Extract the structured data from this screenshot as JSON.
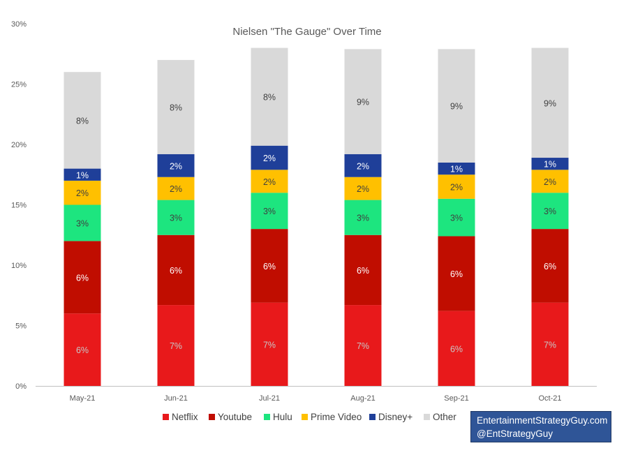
{
  "chart_data": {
    "type": "bar",
    "stacked": true,
    "title": "Nielsen \"The Gauge\" Over Time",
    "xlabel": "",
    "ylabel": "",
    "ylim": [
      0,
      30
    ],
    "y_ticks": [
      "0%",
      "5%",
      "10%",
      "15%",
      "20%",
      "25%",
      "30%"
    ],
    "y_tick_values": [
      0,
      5,
      10,
      15,
      20,
      25,
      30
    ],
    "grid": false,
    "legend_position": "bottom",
    "categories": [
      "May-21",
      "Jun-21",
      "Jul-21",
      "Aug-21",
      "Sep-21",
      "Oct-21"
    ],
    "series": [
      {
        "name": "Netflix",
        "color": "#e8191b",
        "values": [
          6.0,
          6.7,
          6.9,
          6.7,
          6.2,
          6.9
        ],
        "labels": [
          "6%",
          "7%",
          "7%",
          "7%",
          "6%",
          "7%"
        ],
        "label_color": "#c8c8c8"
      },
      {
        "name": "Youtube",
        "color": "#c00d00",
        "values": [
          6.0,
          5.8,
          6.1,
          5.8,
          6.2,
          6.1
        ],
        "labels": [
          "6%",
          "6%",
          "6%",
          "6%",
          "6%",
          "6%"
        ],
        "label_color": "#ffffff"
      },
      {
        "name": "Hulu",
        "color": "#1de57f",
        "values": [
          3.0,
          2.9,
          3.0,
          2.9,
          3.1,
          3.0
        ],
        "labels": [
          "3%",
          "3%",
          "3%",
          "3%",
          "3%",
          "3%"
        ],
        "label_color": "#404040"
      },
      {
        "name": "Prime Video",
        "color": "#ffc000",
        "values": [
          2.0,
          1.9,
          1.9,
          1.9,
          2.0,
          1.9
        ],
        "labels": [
          "2%",
          "2%",
          "2%",
          "2%",
          "2%",
          "2%"
        ],
        "label_color": "#404040"
      },
      {
        "name": "Disney+",
        "color": "#1f3f99",
        "values": [
          1.0,
          1.9,
          2.0,
          1.9,
          1.0,
          1.0
        ],
        "labels": [
          "1%",
          "2%",
          "2%",
          "2%",
          "1%",
          "1%"
        ],
        "label_color": "#ffffff"
      },
      {
        "name": "Other",
        "color": "#d9d9d9",
        "values": [
          8.0,
          7.8,
          8.1,
          8.7,
          9.4,
          9.1
        ],
        "labels": [
          "8%",
          "8%",
          "8%",
          "9%",
          "9%",
          "9%"
        ],
        "label_color": "#404040"
      }
    ]
  },
  "credit": {
    "line1": "EntertainmentStrategyGuy.com",
    "line2": "@EntStrategyGuy"
  }
}
